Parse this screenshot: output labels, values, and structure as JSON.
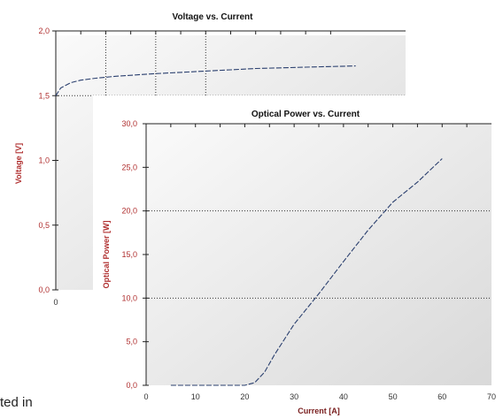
{
  "page": {
    "caption_fragment": "ted in"
  },
  "chart_data": [
    {
      "type": "line",
      "title": "Voltage vs. Current",
      "ylabel": "Voltage [V]",
      "xlabel": "",
      "xlim": [
        0,
        70
      ],
      "ylim": [
        0,
        2.0
      ],
      "yticks": [
        "0,0",
        "0,5",
        "1,0",
        "1,5",
        "2,0"
      ],
      "xticks": [
        "0"
      ],
      "series": [
        {
          "x": [
            0,
            1,
            2,
            3,
            5,
            8,
            12,
            16,
            20,
            25,
            30,
            35,
            40,
            45,
            50,
            55,
            60
          ],
          "values": [
            1.5,
            1.56,
            1.58,
            1.6,
            1.62,
            1.635,
            1.65,
            1.66,
            1.67,
            1.68,
            1.69,
            1.7,
            1.71,
            1.715,
            1.72,
            1.725,
            1.73
          ]
        }
      ],
      "grid": "dotted"
    },
    {
      "type": "line",
      "title": "Optical Power vs. Current",
      "ylabel": "Optical Power [W]",
      "xlabel": "Current [A]",
      "xlim": [
        0,
        70
      ],
      "ylim": [
        0,
        30
      ],
      "yticks": [
        "0,0",
        "5,0",
        "10,0",
        "15,0",
        "20,0",
        "25,0",
        "30,0"
      ],
      "xticks": [
        "0",
        "10",
        "20",
        "30",
        "40",
        "50",
        "60",
        "70"
      ],
      "series": [
        {
          "x": [
            5,
            10,
            15,
            20,
            22,
            24,
            26,
            30,
            35,
            40,
            45,
            50,
            55,
            60
          ],
          "values": [
            0,
            0,
            0,
            0,
            0.3,
            1.5,
            3.5,
            7.0,
            10.5,
            14.2,
            17.8,
            21.0,
            23.3,
            26.0
          ]
        }
      ],
      "grid": "dotted"
    }
  ]
}
